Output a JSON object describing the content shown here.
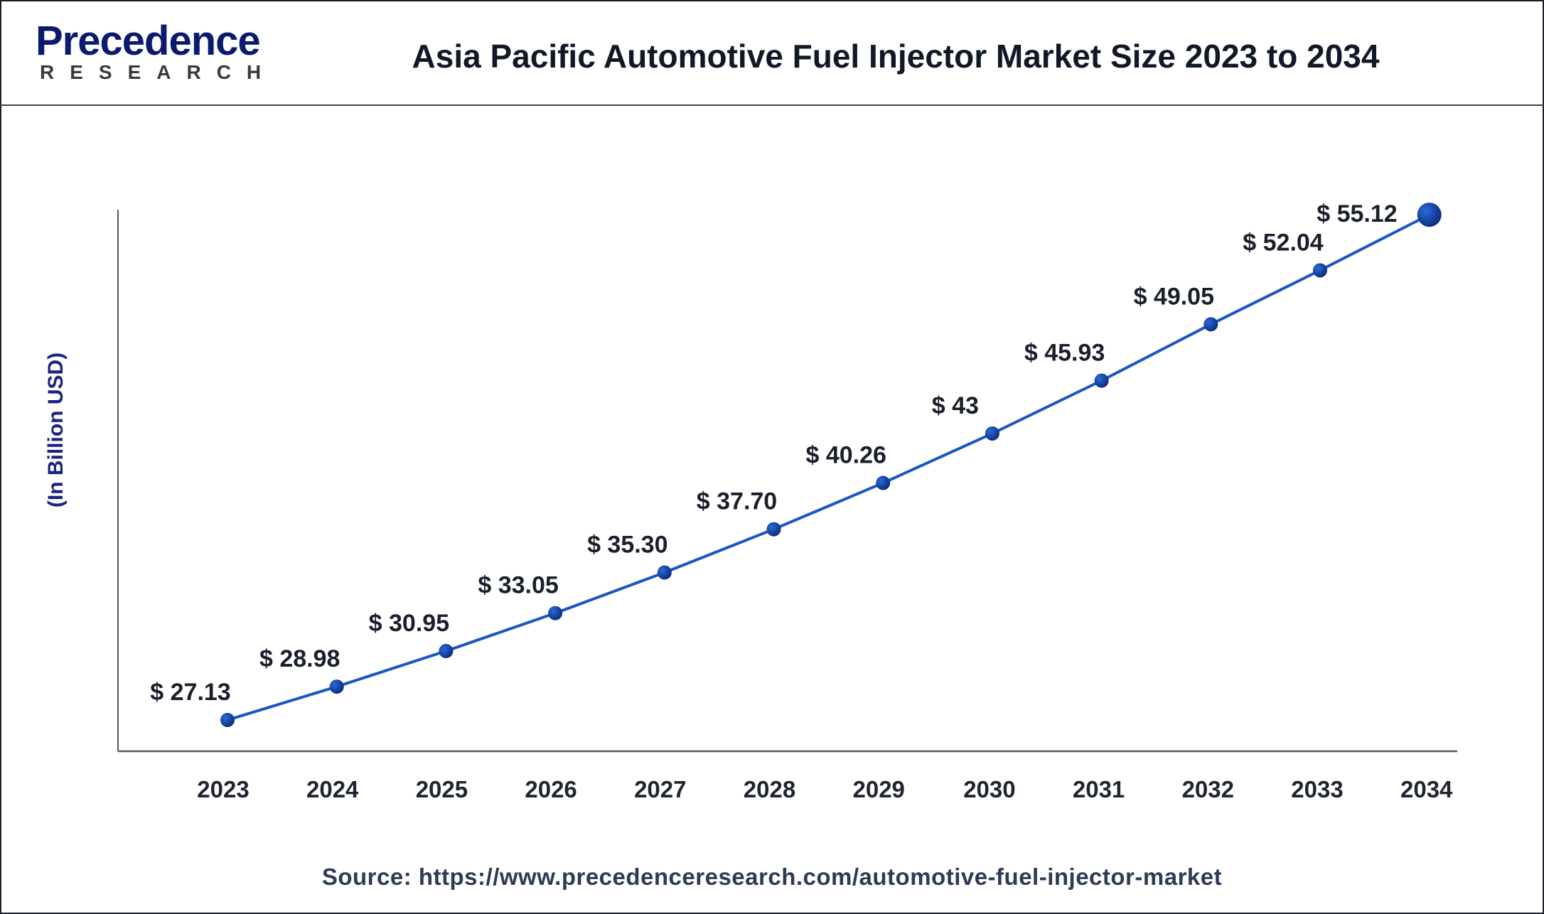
{
  "logo": {
    "word": "Precedence",
    "sub": "RESEARCH"
  },
  "title": "Asia Pacific Automotive Fuel Injector Market Size 2023 to 2034",
  "source": "Source: https://www.precedenceresearch.com/automotive-fuel-injector-market",
  "colors": {
    "line": "#1a56c4",
    "marker": "#0d3a9a",
    "axis": "#555a63",
    "ylabel": "#1a237e"
  },
  "chart_data": {
    "type": "line",
    "title": "Asia Pacific Automotive Fuel Injector Market Size 2023 to 2034",
    "xlabel": "",
    "ylabel": "(In Billion USD)",
    "categories": [
      "2023",
      "2024",
      "2025",
      "2026",
      "2027",
      "2028",
      "2029",
      "2030",
      "2031",
      "2032",
      "2033",
      "2034"
    ],
    "values": [
      27.13,
      28.98,
      30.95,
      33.05,
      35.3,
      37.7,
      40.26,
      43,
      45.93,
      49.05,
      52.04,
      55.12
    ],
    "data_labels": [
      "$ 27.13",
      "$ 28.98",
      "$ 30.95",
      "$ 33.05",
      "$ 35.30",
      "$ 37.70",
      "$ 40.26",
      "$ 43",
      "$ 45.93",
      "$ 49.05",
      "$ 52.04",
      "$ 55.12"
    ],
    "ylim": [
      25.4,
      55.4
    ],
    "grid": false,
    "legend": "none"
  }
}
